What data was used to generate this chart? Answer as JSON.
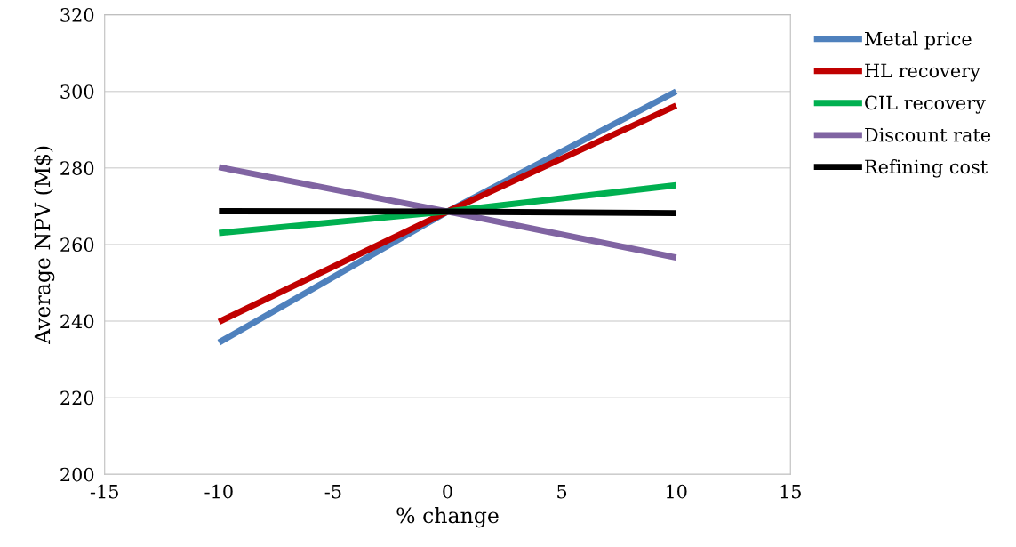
{
  "chart_data": {
    "type": "line",
    "xlabel": "% change",
    "ylabel": "Average NPV (M$)",
    "x": [
      -10,
      0,
      10
    ],
    "series": [
      {
        "name": "Metal price",
        "color": "#4f81bd",
        "values": [
          234.4,
          268.6,
          300
        ]
      },
      {
        "name": "HL recovery",
        "color": "#c00000",
        "values": [
          239.8,
          268.6,
          296.3
        ]
      },
      {
        "name": "CIL recovery",
        "color": "#00b050",
        "values": [
          263,
          268.6,
          275.5
        ]
      },
      {
        "name": "Discount rate",
        "color": "#8064a2",
        "values": [
          280.2,
          268.6,
          256.6
        ]
      },
      {
        "name": "Refining cost",
        "color": "#000000",
        "values": [
          268.7,
          268.6,
          268.2
        ]
      }
    ],
    "xlim": [
      -15,
      15
    ],
    "xticks": [
      -15,
      -10,
      -5,
      0,
      5,
      10,
      15
    ],
    "ylim": [
      200,
      320
    ],
    "yticks": [
      200,
      220,
      240,
      260,
      280,
      300,
      320
    ],
    "grid": "y",
    "legend": "right",
    "marker": "none",
    "line_style": "solid"
  }
}
